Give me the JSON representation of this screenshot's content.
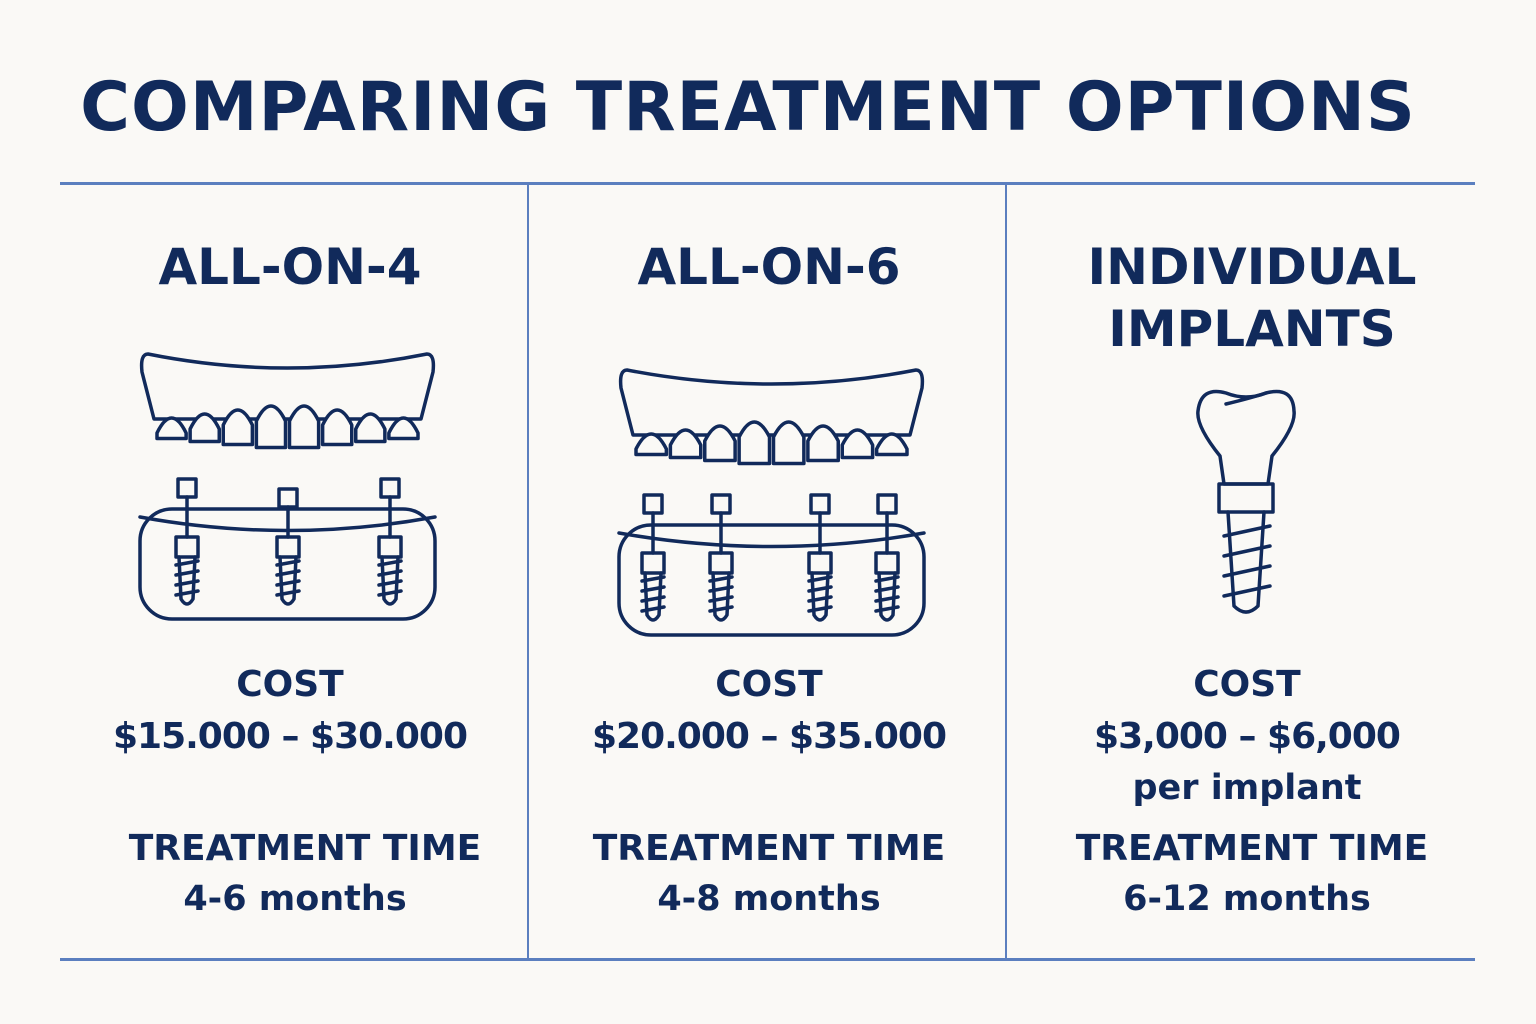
{
  "title": "COMPARING TREATMENT OPTIONS",
  "colors": {
    "text": "#112a5b",
    "divider": "#5b7fbf",
    "background": "#faf9f6"
  },
  "options": [
    {
      "name": "ALL-ON-4",
      "icon": "full-arch-denture-4-implants-icon",
      "cost_label": "COST",
      "cost": "$15.000 – $30.000",
      "cost_note": "",
      "time_label": "TREATMENT TIME",
      "time": "4-6 months"
    },
    {
      "name": "ALL-ON-6",
      "icon": "full-arch-denture-6-implants-icon",
      "cost_label": "COST",
      "cost": "$20.000 – $35.000",
      "cost_note": "",
      "time_label": "TREATMENT TIME",
      "time": "4-8 months"
    },
    {
      "name": "INDIVIDUAL IMPLANTS",
      "icon": "single-tooth-implant-icon",
      "cost_label": "COST",
      "cost": "$3,000 – $6,000",
      "cost_note": "per implant",
      "time_label": "TREATMENT TIME",
      "time": "6-12 months"
    }
  ]
}
